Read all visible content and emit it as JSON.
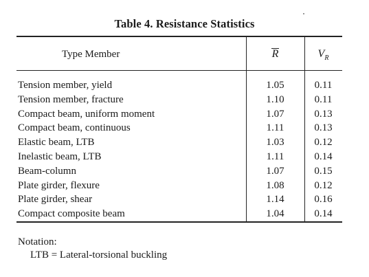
{
  "title": "Table 4.  Resistance Statistics",
  "headers": {
    "member": "Type Member",
    "r_symbol": "R",
    "v_symbol": "V",
    "v_subscript": "R"
  },
  "rows": [
    {
      "member": "Tension member, yield",
      "r": "1.05",
      "v": "0.11"
    },
    {
      "member": "Tension member, fracture",
      "r": "1.10",
      "v": "0.11"
    },
    {
      "member": "Compact beam, uniform moment",
      "r": "1.07",
      "v": "0.13"
    },
    {
      "member": "Compact beam, continuous",
      "r": "1.11",
      "v": "0.13"
    },
    {
      "member": "Elastic beam, LTB",
      "r": "1.03",
      "v": "0.12"
    },
    {
      "member": "Inelastic beam, LTB",
      "r": "1.11",
      "v": "0.14"
    },
    {
      "member": "Beam-column",
      "r": "1.07",
      "v": "0.15"
    },
    {
      "member": "Plate girder, flexure",
      "r": "1.08",
      "v": "0.12"
    },
    {
      "member": "Plate girder, shear",
      "r": "1.14",
      "v": "0.16"
    },
    {
      "member": "Compact composite beam",
      "r": "1.04",
      "v": "0.14"
    }
  ],
  "notation": {
    "label": "Notation:",
    "item": "LTB = Lateral-torsional buckling"
  }
}
